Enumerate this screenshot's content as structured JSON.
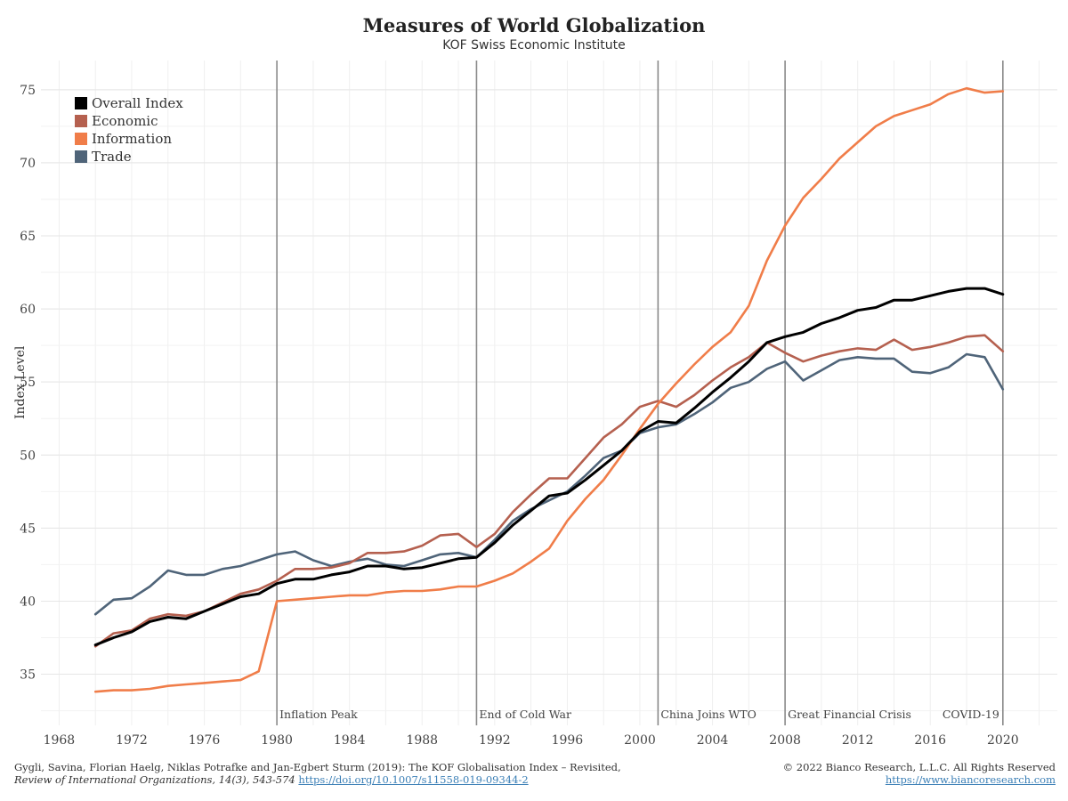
{
  "title": "Measures of World Globalization",
  "subtitle": "KOF Swiss Economic Institute",
  "chart_data": {
    "type": "line",
    "ylabel": "Index Level",
    "xlabel": "",
    "xlim": [
      1967,
      2023
    ],
    "ylim": [
      31.5,
      77
    ],
    "x_ticks": [
      1968,
      1972,
      1976,
      1980,
      1984,
      1988,
      1992,
      1996,
      2000,
      2004,
      2008,
      2012,
      2016,
      2020
    ],
    "y_ticks": [
      35,
      40,
      45,
      50,
      55,
      60,
      65,
      70,
      75
    ],
    "grid": true,
    "legend_position": "top-left",
    "x": [
      1970,
      1971,
      1972,
      1973,
      1974,
      1975,
      1976,
      1977,
      1978,
      1979,
      1980,
      1981,
      1982,
      1983,
      1984,
      1985,
      1986,
      1987,
      1988,
      1989,
      1990,
      1991,
      1992,
      1993,
      1994,
      1995,
      1996,
      1997,
      1998,
      1999,
      2000,
      2001,
      2002,
      2003,
      2004,
      2005,
      2006,
      2007,
      2008,
      2009,
      2010,
      2011,
      2012,
      2013,
      2014,
      2015,
      2016,
      2017,
      2018,
      2019,
      2020
    ],
    "series": [
      {
        "name": "Overall Index",
        "color": "#000000",
        "values": [
          37.0,
          37.5,
          37.9,
          38.6,
          38.9,
          38.8,
          39.3,
          39.8,
          40.3,
          40.5,
          41.2,
          41.5,
          41.5,
          41.8,
          42.0,
          42.4,
          42.4,
          42.2,
          42.3,
          42.6,
          42.9,
          43.0,
          44.0,
          45.2,
          46.2,
          47.2,
          47.4,
          48.3,
          49.3,
          50.3,
          51.6,
          52.3,
          52.2,
          53.2,
          54.3,
          55.3,
          56.4,
          57.7,
          58.1,
          58.4,
          59.0,
          59.4,
          59.9,
          60.1,
          60.6,
          60.6,
          60.9,
          61.2,
          61.4,
          61.4,
          61.0
        ]
      },
      {
        "name": "Economic",
        "color": "#b5604f",
        "values": [
          36.9,
          37.8,
          38.0,
          38.8,
          39.1,
          39.0,
          39.3,
          39.9,
          40.5,
          40.8,
          41.4,
          42.2,
          42.2,
          42.3,
          42.6,
          43.3,
          43.3,
          43.4,
          43.8,
          44.5,
          44.6,
          43.7,
          44.6,
          46.1,
          47.3,
          48.4,
          48.4,
          49.8,
          51.2,
          52.1,
          53.3,
          53.7,
          53.3,
          54.1,
          55.1,
          56.0,
          56.7,
          57.7,
          57.0,
          56.4,
          56.8,
          57.1,
          57.3,
          57.2,
          57.9,
          57.2,
          57.4,
          57.7,
          58.1,
          58.2,
          57.1
        ]
      },
      {
        "name": "Information",
        "color": "#f07d49",
        "values": [
          33.8,
          33.9,
          33.9,
          34.0,
          34.2,
          34.3,
          34.4,
          34.5,
          34.6,
          35.2,
          40.0,
          40.1,
          40.2,
          40.3,
          40.4,
          40.4,
          40.6,
          40.7,
          40.7,
          40.8,
          41.0,
          41.0,
          41.4,
          41.9,
          42.7,
          43.6,
          45.5,
          47.0,
          48.3,
          50.0,
          51.8,
          53.5,
          54.9,
          56.2,
          57.4,
          58.4,
          60.2,
          63.3,
          65.7,
          67.6,
          68.9,
          70.3,
          71.4,
          72.5,
          73.2,
          73.6,
          74.0,
          74.7,
          75.1,
          74.8,
          74.9
        ]
      },
      {
        "name": "Trade",
        "color": "#4f6479",
        "values": [
          39.1,
          40.1,
          40.2,
          41.0,
          42.1,
          41.8,
          41.8,
          42.2,
          42.4,
          42.8,
          43.2,
          43.4,
          42.8,
          42.4,
          42.7,
          42.9,
          42.5,
          42.4,
          42.8,
          43.2,
          43.3,
          43.0,
          44.2,
          45.5,
          46.3,
          46.9,
          47.5,
          48.6,
          49.8,
          50.3,
          51.5,
          51.9,
          52.1,
          52.8,
          53.6,
          54.6,
          55.0,
          55.9,
          56.4,
          55.1,
          55.8,
          56.5,
          56.7,
          56.6,
          56.6,
          55.7,
          55.6,
          56.0,
          56.9,
          56.7,
          54.5
        ]
      }
    ],
    "events": [
      {
        "year": 1980,
        "label": "Inflation Peak"
      },
      {
        "year": 1991,
        "label": "End of Cold War"
      },
      {
        "year": 2001,
        "label": "China Joins WTO"
      },
      {
        "year": 2008,
        "label": "Great Financial Crisis"
      },
      {
        "year": 2020,
        "label": "COVID-19"
      }
    ]
  },
  "source": {
    "line1": "Gygli, Savina, Florian Haelg, Niklas Potrafke and Jan-Egbert Sturm (2019): The KOF Globalisation Index – Revisited,",
    "line2_italic": "Review of International Organizations, 14(3), 543-574",
    "line2_link": "https://doi.org/10.1007/s11558-019-09344-2"
  },
  "copyright": {
    "line1": "© 2022 Bianco Research, L.L.C. All Rights Reserved",
    "link": "https://www.biancoresearch.com"
  }
}
